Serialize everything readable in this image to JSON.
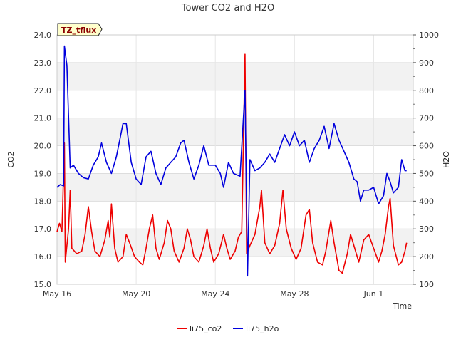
{
  "chart_data": {
    "type": "line",
    "title": "Tower CO2 and H2O",
    "badge": "TZ_tflux",
    "xlabel": "Time",
    "ylabel_left": "CO2",
    "ylabel_right": "H2O",
    "xlim": [
      "May 16",
      "Jun 3"
    ],
    "ylim_left": [
      15.0,
      24.0
    ],
    "ylim_right": [
      100,
      1000
    ],
    "x_ticks": [
      {
        "date": "May 16",
        "label": "May 16"
      },
      {
        "date": "May 20",
        "label": "May 20"
      },
      {
        "date": "May 24",
        "label": "May 24"
      },
      {
        "date": "May 28",
        "label": "May 28"
      },
      {
        "date": "Jun 1",
        "label": "Jun 1"
      }
    ],
    "y_ticks_left": [
      "15.0",
      "16.0",
      "17.0",
      "18.0",
      "19.0",
      "20.0",
      "21.0",
      "22.0",
      "23.0",
      "24.0"
    ],
    "y_ticks_right": [
      "100",
      "200",
      "300",
      "400",
      "500",
      "600",
      "700",
      "800",
      "900",
      "1000"
    ],
    "grid": true,
    "legend_position": "bottom",
    "series": [
      {
        "name": "li75_co2",
        "axis": "left",
        "color": "#ee0000",
        "points": [
          [
            "May 16 00:00",
            16.9
          ],
          [
            "May 16 03:00",
            17.2
          ],
          [
            "May 16 06:00",
            16.9
          ],
          [
            "May 16 09:00",
            20.1
          ],
          [
            "May 16 10:00",
            15.8
          ],
          [
            "May 16 14:00",
            17.0
          ],
          [
            "May 16 16:00",
            18.4
          ],
          [
            "May 16 18:00",
            16.3
          ],
          [
            "May 17 00:00",
            16.1
          ],
          [
            "May 17 06:00",
            16.2
          ],
          [
            "May 17 10:00",
            16.8
          ],
          [
            "May 17 14:00",
            17.8
          ],
          [
            "May 17 18:00",
            16.9
          ],
          [
            "May 17 22:00",
            16.2
          ],
          [
            "May 18 04:00",
            16.0
          ],
          [
            "May 18 10:00",
            16.6
          ],
          [
            "May 18 14:00",
            17.3
          ],
          [
            "May 18 16:00",
            16.7
          ],
          [
            "May 18 18:00",
            17.9
          ],
          [
            "May 18 22:00",
            16.3
          ],
          [
            "May 19 02:00",
            15.8
          ],
          [
            "May 19 08:00",
            16.0
          ],
          [
            "May 19 12:00",
            16.8
          ],
          [
            "May 19 16:00",
            16.5
          ],
          [
            "May 19 22:00",
            16.0
          ],
          [
            "May 20 04:00",
            15.8
          ],
          [
            "May 20 08:00",
            15.7
          ],
          [
            "May 20 12:00",
            16.3
          ],
          [
            "May 20 16:00",
            17.0
          ],
          [
            "May 20 20:00",
            17.5
          ],
          [
            "May 21 00:00",
            16.3
          ],
          [
            "May 21 04:00",
            15.9
          ],
          [
            "May 21 10:00",
            16.5
          ],
          [
            "May 21 14:00",
            17.3
          ],
          [
            "May 21 18:00",
            17.0
          ],
          [
            "May 21 22:00",
            16.2
          ],
          [
            "May 22 04:00",
            15.8
          ],
          [
            "May 22 10:00",
            16.3
          ],
          [
            "May 22 14:00",
            17.0
          ],
          [
            "May 22 18:00",
            16.6
          ],
          [
            "May 22 22:00",
            16.0
          ],
          [
            "May 23 04:00",
            15.8
          ],
          [
            "May 23 10:00",
            16.4
          ],
          [
            "May 23 14:00",
            17.0
          ],
          [
            "May 23 18:00",
            16.3
          ],
          [
            "May 23 22:00",
            15.8
          ],
          [
            "May 24 04:00",
            16.1
          ],
          [
            "May 24 10:00",
            16.8
          ],
          [
            "May 24 14:00",
            16.3
          ],
          [
            "May 24 18:00",
            15.9
          ],
          [
            "May 25 00:00",
            16.2
          ],
          [
            "May 25 04:00",
            16.7
          ],
          [
            "May 25 08:00",
            16.9
          ],
          [
            "May 25 12:00",
            23.3
          ],
          [
            "May 25 14:00",
            16.1
          ],
          [
            "May 25 18:00",
            16.4
          ],
          [
            "May 26 00:00",
            16.8
          ],
          [
            "May 26 06:00",
            17.8
          ],
          [
            "May 26 08:00",
            18.4
          ],
          [
            "May 26 12:00",
            16.5
          ],
          [
            "May 26 18:00",
            16.1
          ],
          [
            "May 27 00:00",
            16.4
          ],
          [
            "May 27 06:00",
            17.2
          ],
          [
            "May 27 10:00",
            18.4
          ],
          [
            "May 27 14:00",
            17.0
          ],
          [
            "May 27 20:00",
            16.3
          ],
          [
            "May 28 02:00",
            15.9
          ],
          [
            "May 28 08:00",
            16.3
          ],
          [
            "May 28 14:00",
            17.5
          ],
          [
            "May 28 18:00",
            17.7
          ],
          [
            "May 28 22:00",
            16.5
          ],
          [
            "May 29 04:00",
            15.8
          ],
          [
            "May 29 10:00",
            15.7
          ],
          [
            "May 29 14:00",
            16.2
          ],
          [
            "May 29 20:00",
            17.3
          ],
          [
            "May 30 00:00",
            16.5
          ],
          [
            "May 30 06:00",
            15.5
          ],
          [
            "May 30 10:00",
            15.4
          ],
          [
            "May 30 16:00",
            16.1
          ],
          [
            "May 30 20:00",
            16.8
          ],
          [
            "May 31 00:00",
            16.4
          ],
          [
            "May 31 06:00",
            15.8
          ],
          [
            "May 31 12:00",
            16.6
          ],
          [
            "May 31 18:00",
            16.8
          ],
          [
            "Jun 1 00:00",
            16.3
          ],
          [
            "Jun 1 06:00",
            15.8
          ],
          [
            "Jun 1 10:00",
            16.2
          ],
          [
            "Jun 1 14:00",
            16.8
          ],
          [
            "Jun 1 18:00",
            17.8
          ],
          [
            "Jun 1 20:00",
            18.1
          ],
          [
            "Jun 2 00:00",
            16.4
          ],
          [
            "Jun 2 06:00",
            15.7
          ],
          [
            "Jun 2 10:00",
            15.8
          ],
          [
            "Jun 2 14:00",
            16.2
          ],
          [
            "Jun 2 16:00",
            16.5
          ]
        ]
      },
      {
        "name": "li75_h2o",
        "axis": "right",
        "color": "#0000dd",
        "points": [
          [
            "May 16 00:00",
            450
          ],
          [
            "May 16 04:00",
            460
          ],
          [
            "May 16 08:00",
            455
          ],
          [
            "May 16 09:00",
            960
          ],
          [
            "May 16 12:00",
            890
          ],
          [
            "May 16 16:00",
            520
          ],
          [
            "May 16 20:00",
            530
          ],
          [
            "May 17 02:00",
            500
          ],
          [
            "May 17 08:00",
            485
          ],
          [
            "May 17 14:00",
            480
          ],
          [
            "May 17 20:00",
            530
          ],
          [
            "May 18 02:00",
            560
          ],
          [
            "May 18 06:00",
            610
          ],
          [
            "May 18 12:00",
            540
          ],
          [
            "May 18 18:00",
            500
          ],
          [
            "May 19 00:00",
            560
          ],
          [
            "May 19 04:00",
            620
          ],
          [
            "May 19 08:00",
            680
          ],
          [
            "May 19 12:00",
            680
          ],
          [
            "May 19 18:00",
            540
          ],
          [
            "May 20 00:00",
            480
          ],
          [
            "May 20 06:00",
            460
          ],
          [
            "May 20 12:00",
            560
          ],
          [
            "May 20 18:00",
            580
          ],
          [
            "May 21 00:00",
            500
          ],
          [
            "May 21 06:00",
            460
          ],
          [
            "May 21 12:00",
            520
          ],
          [
            "May 21 18:00",
            540
          ],
          [
            "May 22 00:00",
            560
          ],
          [
            "May 22 06:00",
            610
          ],
          [
            "May 22 10:00",
            620
          ],
          [
            "May 22 16:00",
            540
          ],
          [
            "May 22 22:00",
            480
          ],
          [
            "May 23 04:00",
            530
          ],
          [
            "May 23 10:00",
            600
          ],
          [
            "May 23 16:00",
            530
          ],
          [
            "May 24 00:00",
            530
          ],
          [
            "May 24 06:00",
            500
          ],
          [
            "May 24 10:00",
            450
          ],
          [
            "May 24 16:00",
            540
          ],
          [
            "May 24 22:00",
            500
          ],
          [
            "May 25 06:00",
            490
          ],
          [
            "May 25 12:00",
            800
          ],
          [
            "May 25 15:00",
            130
          ],
          [
            "May 25 18:00",
            550
          ],
          [
            "May 26 00:00",
            510
          ],
          [
            "May 26 06:00",
            520
          ],
          [
            "May 26 12:00",
            540
          ],
          [
            "May 26 18:00",
            570
          ],
          [
            "May 27 00:00",
            540
          ],
          [
            "May 27 06:00",
            590
          ],
          [
            "May 27 12:00",
            640
          ],
          [
            "May 27 18:00",
            600
          ],
          [
            "May 28 00:00",
            650
          ],
          [
            "May 28 06:00",
            600
          ],
          [
            "May 28 12:00",
            620
          ],
          [
            "May 28 18:00",
            540
          ],
          [
            "May 29 00:00",
            590
          ],
          [
            "May 29 06:00",
            620
          ],
          [
            "May 29 12:00",
            670
          ],
          [
            "May 29 18:00",
            590
          ],
          [
            "May 30 00:00",
            680
          ],
          [
            "May 30 06:00",
            620
          ],
          [
            "May 30 12:00",
            580
          ],
          [
            "May 30 18:00",
            540
          ],
          [
            "May 31 00:00",
            480
          ],
          [
            "May 31 04:00",
            470
          ],
          [
            "May 31 08:00",
            400
          ],
          [
            "May 31 12:00",
            440
          ],
          [
            "May 31 18:00",
            440
          ],
          [
            "Jun 1 00:00",
            450
          ],
          [
            "Jun 1 06:00",
            390
          ],
          [
            "Jun 1 12:00",
            420
          ],
          [
            "Jun 1 16:00",
            500
          ],
          [
            "Jun 1 20:00",
            470
          ],
          [
            "Jun 2 00:00",
            430
          ],
          [
            "Jun 2 06:00",
            450
          ],
          [
            "Jun 2 10:00",
            550
          ],
          [
            "Jun 2 14:00",
            510
          ],
          [
            "Jun 2 16:00",
            510
          ]
        ]
      }
    ]
  }
}
